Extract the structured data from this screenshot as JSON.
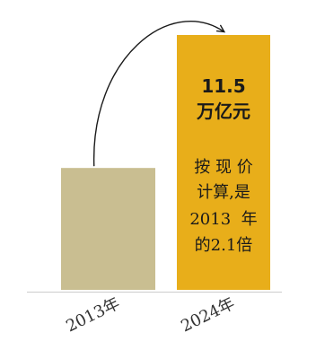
{
  "chart_data": {
    "type": "bar",
    "categories": [
      "2013年",
      "2024年"
    ],
    "values": [
      5.5,
      11.5
    ],
    "colors": {
      "bar_2013": "#c9be91",
      "bar_2024": "#e8ae1a",
      "axis": "#cccccc",
      "arrow": "#1a1a1a",
      "value_text": "#1a1a1a",
      "note_text": "#1a1a1a",
      "tick_text": "#333333"
    },
    "annotations": {
      "value_number": "11.5",
      "value_unit": "万亿元",
      "note_lines": [
        "按 现 价",
        "计算,是",
        "2013  年",
        "的2.1倍"
      ]
    },
    "arrow": {
      "from": "2013年",
      "to": "2024年"
    }
  }
}
